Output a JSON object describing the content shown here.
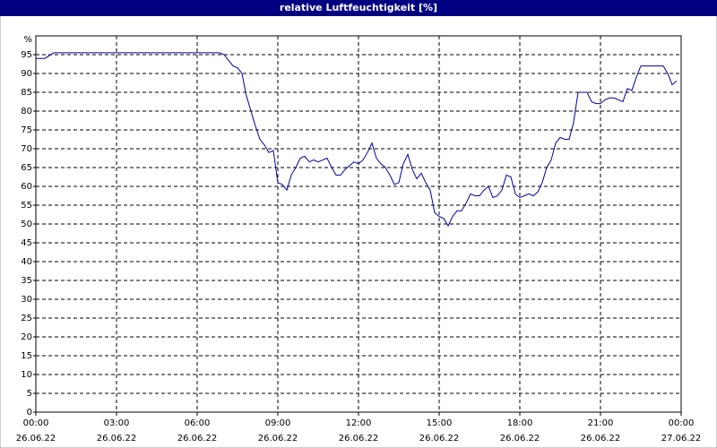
{
  "chart_data": {
    "type": "line",
    "title": "relative Luftfeuchtigkeit [%]",
    "ylabel": "%",
    "x": [
      0,
      20,
      40,
      410,
      420,
      430,
      440,
      450,
      460,
      470,
      480,
      490,
      500,
      510,
      520,
      530,
      540,
      550,
      560,
      570,
      580,
      590,
      600,
      610,
      620,
      630,
      640,
      650,
      660,
      670,
      680,
      690,
      700,
      710,
      720,
      730,
      740,
      750,
      760,
      770,
      780,
      790,
      800,
      810,
      820,
      830,
      840,
      850,
      860,
      870,
      880,
      890,
      900,
      910,
      920,
      930,
      940,
      950,
      960,
      970,
      980,
      990,
      1000,
      1010,
      1020,
      1030,
      1040,
      1050,
      1060,
      1070,
      1080,
      1090,
      1100,
      1110,
      1120,
      1130,
      1140,
      1150,
      1160,
      1170,
      1180,
      1190,
      1200,
      1210,
      1220,
      1230,
      1240,
      1250,
      1260,
      1270,
      1280,
      1290,
      1300,
      1310,
      1320,
      1330,
      1340,
      1350,
      1400,
      1410,
      1420,
      1430
    ],
    "series": [
      {
        "color": "#0000a0",
        "values": [
          94,
          94,
          95.5,
          95.5,
          95,
          93.5,
          92,
          91.5,
          90,
          84,
          80,
          76,
          72.5,
          71,
          69,
          69.5,
          61,
          60.5,
          59,
          63,
          65,
          67.5,
          68,
          66.5,
          67,
          66.5,
          67,
          67.5,
          65,
          63,
          63,
          64.5,
          65.5,
          66.5,
          66,
          67,
          69,
          71.5,
          67.5,
          66,
          65,
          63,
          60.5,
          61,
          66,
          68.5,
          64.5,
          62,
          63.5,
          61,
          59,
          53,
          52,
          51.5,
          49.5,
          52,
          53.5,
          53.5,
          55.5,
          58,
          57.5,
          57.5,
          59,
          60,
          57,
          57.5,
          59,
          63,
          62.5,
          58,
          57,
          57.5,
          58,
          57.5,
          58.5,
          61,
          65,
          67,
          71.5,
          73,
          72.5,
          72.5,
          77,
          85,
          85,
          85,
          82.5,
          82,
          82,
          83,
          83.5,
          83.5,
          83,
          82.5,
          86,
          85.5,
          89,
          92,
          92,
          90,
          87,
          88
        ]
      }
    ],
    "xlim": [
      0,
      1440
    ],
    "xticks": [
      {
        "value": 0,
        "label": "00:00"
      },
      {
        "value": 180,
        "label": "03:00"
      },
      {
        "value": 360,
        "label": "06:00"
      },
      {
        "value": 540,
        "label": "09:00"
      },
      {
        "value": 720,
        "label": "12:00"
      },
      {
        "value": 900,
        "label": "15:00"
      },
      {
        "value": 1080,
        "label": "18:00"
      },
      {
        "value": 1260,
        "label": "21:00"
      },
      {
        "value": 1440,
        "label": "00:00"
      }
    ],
    "xtick_dates": [
      "26.06.22",
      "26.06.22",
      "26.06.22",
      "26.06.22",
      "26.06.22",
      "26.06.22",
      "26.06.22",
      "26.06.22",
      "27.06.22"
    ],
    "ylim": [
      0,
      100
    ],
    "yticks": [
      0,
      5,
      10,
      15,
      20,
      25,
      30,
      35,
      40,
      45,
      50,
      55,
      60,
      65,
      70,
      75,
      80,
      85,
      90,
      95
    ],
    "grid": true
  }
}
